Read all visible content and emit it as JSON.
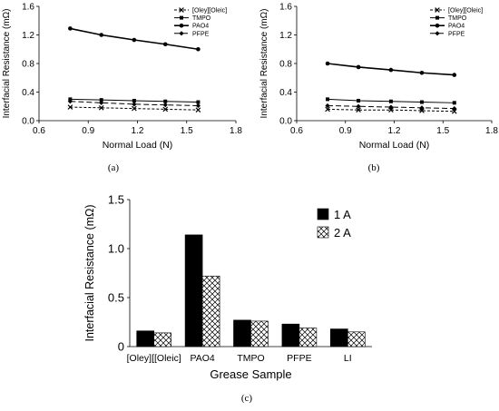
{
  "chart_data": [
    {
      "type": "line",
      "panel_label": "(a)",
      "xlabel": "Normal Load (N)",
      "ylabel": "Interfacial Resistance (mΩ)",
      "xlim": [
        0.6,
        1.8
      ],
      "ylim": [
        0.0,
        1.6
      ],
      "xticks": [
        "0.6",
        "0.9",
        "1.2",
        "1.5",
        "1.8"
      ],
      "yticks": [
        "0.0",
        "0.4",
        "0.8",
        "1.2",
        "1.6"
      ],
      "grid": false,
      "legend": "top-right",
      "x": [
        0.79,
        0.98,
        1.18,
        1.37,
        1.57
      ],
      "series": [
        {
          "name": "[Oley][Oleic]",
          "marker": "x",
          "dash": "3,2",
          "values": [
            0.19,
            0.18,
            0.17,
            0.16,
            0.15
          ]
        },
        {
          "name": "TMPO",
          "marker": "square",
          "dash": "",
          "values": [
            0.3,
            0.29,
            0.28,
            0.27,
            0.26
          ]
        },
        {
          "name": "PAO4",
          "marker": "circle",
          "dash": "",
          "values": [
            1.29,
            1.2,
            1.13,
            1.07,
            1.0
          ]
        },
        {
          "name": "PFPE",
          "marker": "diamond",
          "dash": "6,3",
          "values": [
            0.27,
            0.25,
            0.23,
            0.22,
            0.21
          ]
        }
      ]
    },
    {
      "type": "line",
      "panel_label": "(b)",
      "xlabel": "Normal Load (N)",
      "ylabel": "Interfacial Resistance (mΩ)",
      "xlim": [
        0.6,
        1.8
      ],
      "ylim": [
        0.0,
        1.6
      ],
      "xticks": [
        "0.6",
        "0.9",
        "1.2",
        "1.5",
        "1.8"
      ],
      "yticks": [
        "0.0",
        "0.4",
        "0.8",
        "1.2",
        "1.6"
      ],
      "grid": false,
      "legend": "top-right",
      "x": [
        0.79,
        0.98,
        1.18,
        1.37,
        1.57
      ],
      "series": [
        {
          "name": "[Oley][Oleic]",
          "marker": "x",
          "dash": "3,2",
          "values": [
            0.16,
            0.15,
            0.15,
            0.14,
            0.13
          ]
        },
        {
          "name": "TMPO",
          "marker": "square",
          "dash": "",
          "values": [
            0.3,
            0.28,
            0.27,
            0.26,
            0.25
          ]
        },
        {
          "name": "PAO4",
          "marker": "circle",
          "dash": "",
          "values": [
            0.8,
            0.75,
            0.71,
            0.67,
            0.64
          ]
        },
        {
          "name": "PFPE",
          "marker": "diamond",
          "dash": "6,3",
          "values": [
            0.21,
            0.2,
            0.19,
            0.18,
            0.17
          ]
        }
      ]
    },
    {
      "type": "bar",
      "panel_label": "(c)",
      "xlabel": "Grease Sample",
      "ylabel": "Interfacial Resistance (mΩ)",
      "ylim": [
        0.0,
        1.5
      ],
      "yticks": [
        "0",
        "0.5",
        "1.0",
        "1.5"
      ],
      "grid": false,
      "legend": "top-right",
      "categories": [
        "[Oley][[Oleic]",
        "PAO4",
        "TMPO",
        "PFPE",
        "LI"
      ],
      "series": [
        {
          "name": "1 A",
          "fill": "solid",
          "values": [
            0.16,
            1.14,
            0.27,
            0.23,
            0.18
          ]
        },
        {
          "name": "2 A",
          "fill": "hatch",
          "values": [
            0.14,
            0.72,
            0.26,
            0.19,
            0.15
          ]
        }
      ]
    }
  ]
}
